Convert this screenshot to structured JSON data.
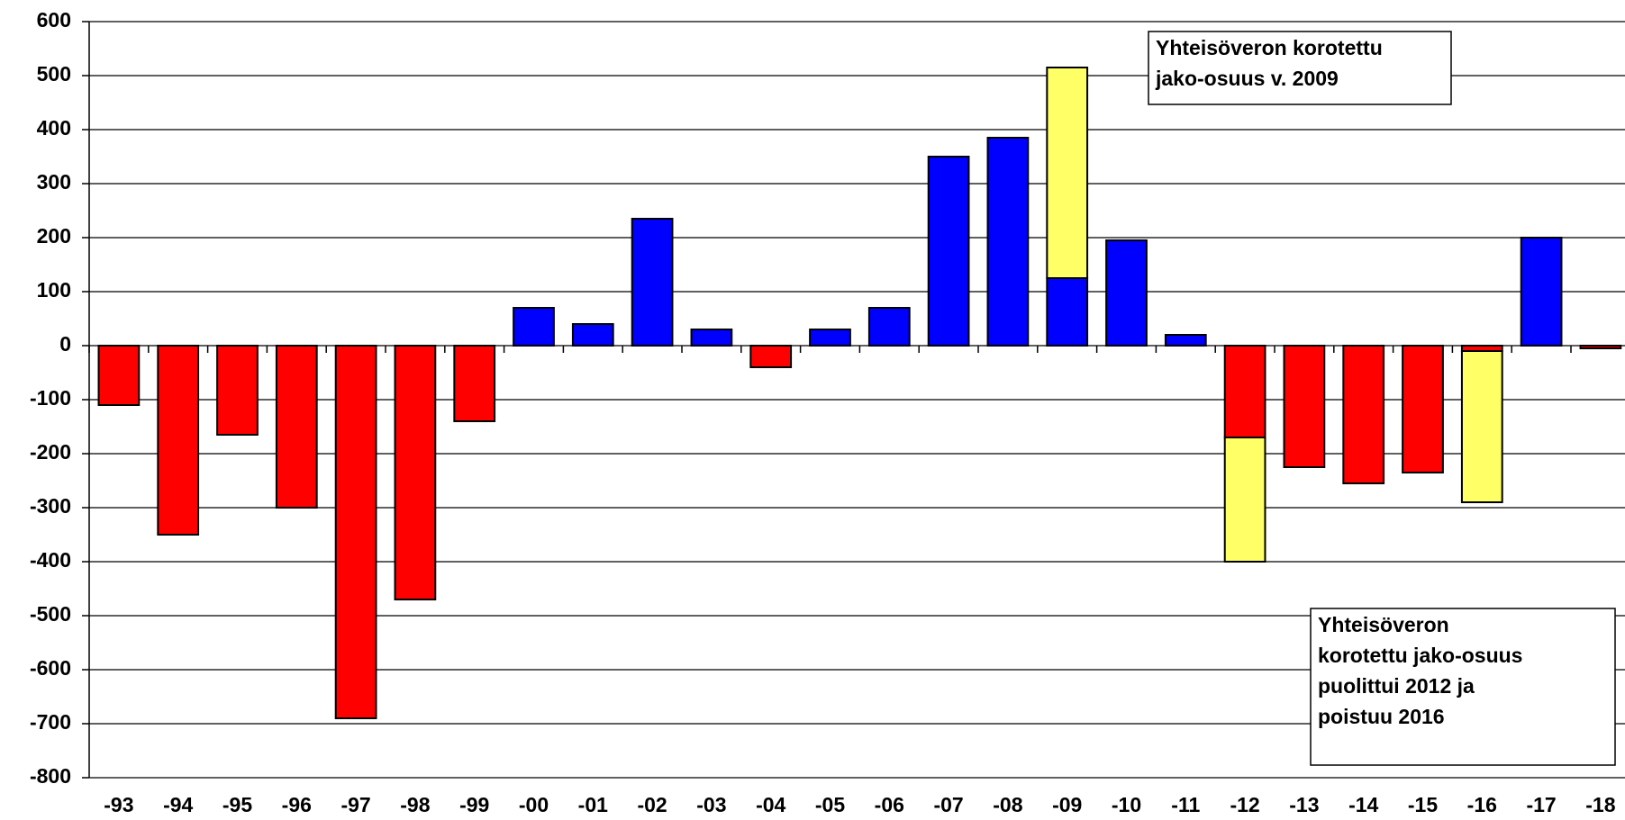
{
  "chart_data": {
    "type": "bar",
    "stacked": true,
    "categories": [
      "-93",
      "-94",
      "-95",
      "-96",
      "-97",
      "-98",
      "-99",
      "-00",
      "-01",
      "-02",
      "-03",
      "-04",
      "-05",
      "-06",
      "-07",
      "-08",
      "-09",
      "-10",
      "-11",
      "-12",
      "-13",
      "-14",
      "-15",
      "-16",
      "-17",
      "-18"
    ],
    "series": [
      {
        "values": [
          -110,
          -350,
          -165,
          -300,
          -690,
          -470,
          -140,
          70,
          40,
          235,
          30,
          -40,
          30,
          70,
          350,
          385,
          125,
          195,
          20,
          -170,
          -225,
          -255,
          -235,
          -10,
          200,
          -5
        ],
        "colors": [
          "#ff0000",
          "#ff0000",
          "#ff0000",
          "#ff0000",
          "#ff0000",
          "#ff0000",
          "#ff0000",
          "#0000ff",
          "#0000ff",
          "#0000ff",
          "#0000ff",
          "#ff0000",
          "#0000ff",
          "#0000ff",
          "#0000ff",
          "#0000ff",
          "#0000ff",
          "#0000ff",
          "#0000ff",
          "#ff0000",
          "#ff0000",
          "#ff0000",
          "#ff0000",
          "#ff0000",
          "#0000ff",
          "#ff0000"
        ]
      },
      {
        "color": "#ffff66",
        "values": [
          null,
          null,
          null,
          null,
          null,
          null,
          null,
          null,
          null,
          null,
          null,
          null,
          null,
          null,
          null,
          null,
          390,
          null,
          null,
          -230,
          null,
          null,
          null,
          -280,
          null,
          null
        ]
      }
    ],
    "ylim": [
      -800,
      600
    ],
    "yticks": [
      -800,
      -700,
      -600,
      -500,
      -400,
      -300,
      -200,
      -100,
      0,
      100,
      200,
      300,
      400,
      500,
      600
    ],
    "grid": true,
    "annotations": [
      {
        "lines": [
          "Yhteisöveron korotettu",
          "jako-osuus v. 2009"
        ]
      },
      {
        "lines": [
          "Yhteisöveron",
          "korotettu jako-osuus",
          "puolittui 2012 ja",
          "poistuu 2016"
        ]
      }
    ]
  }
}
